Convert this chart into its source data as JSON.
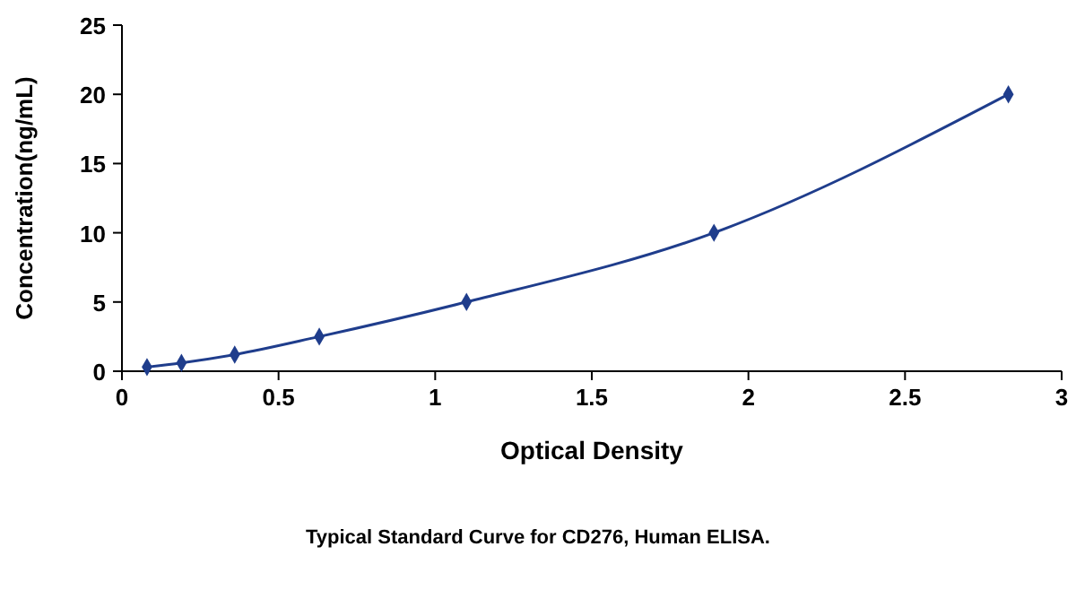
{
  "chart_data": {
    "type": "line",
    "xlabel": "Optical Density",
    "ylabel": "Concentration(ng/mL)",
    "annotations": [
      "Typical Standard Curve for CD276, Human ELISA."
    ],
    "series": [
      {
        "color": "#1f3d8c",
        "x": [
          0.08,
          0.19,
          0.36,
          0.63,
          1.1,
          1.89,
          2.83
        ],
        "values": [
          0.3,
          0.6,
          1.2,
          2.5,
          5,
          10,
          20
        ]
      }
    ],
    "xlim": [
      0,
      3
    ],
    "xticks": [
      0,
      0.5,
      1,
      1.5,
      2,
      2.5,
      3
    ],
    "ylim": [
      0,
      25
    ],
    "yticks": [
      0,
      5,
      10,
      15,
      20,
      25
    ],
    "marker": "diamond",
    "line_style": "solid",
    "grid": false
  }
}
